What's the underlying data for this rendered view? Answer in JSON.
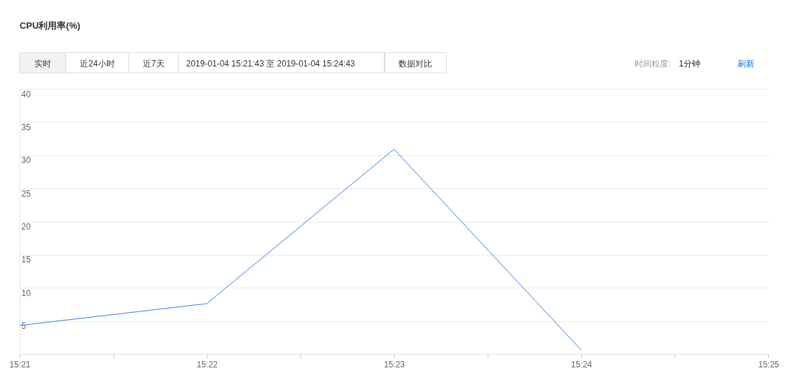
{
  "chart_data": {
    "type": "line",
    "title": "CPU利用率(%)",
    "annotations": [
      "实时",
      "近24小时",
      "近7天",
      "2019-01-04 15:21:43 至 2019-01-04 15:24:43",
      "数据对比",
      "时间粒度:",
      "1分钟",
      "刷新"
    ],
    "x": [
      "2019-01-04T15:21",
      "2019-01-04T15:22",
      "2019-01-04T15:23",
      "2019-01-04T15:24"
    ],
    "series": [
      {
        "color": "#2f7ee6",
        "values": [
          4.3,
          7.6,
          30.9,
          0.6
        ]
      }
    ],
    "xlim": [
      "2019-01-04T15:21",
      "2019-01-04T15:25"
    ],
    "xticks": [
      {
        "value": "2019-01-04T15:21",
        "label": "15:21"
      },
      {
        "value": "2019-01-04T15:21:30",
        "label": null
      },
      {
        "value": "2019-01-04T15:22",
        "label": "15:22"
      },
      {
        "value": "2019-01-04T15:22:30",
        "label": null
      },
      {
        "value": "2019-01-04T15:23",
        "label": "15:23"
      },
      {
        "value": "2019-01-04T15:23:30",
        "label": null
      },
      {
        "value": "2019-01-04T15:24",
        "label": "15:24"
      },
      {
        "value": "2019-01-04T15:24:30",
        "label": null
      },
      {
        "value": "2019-01-04T15:25",
        "label": "15:25"
      }
    ],
    "ylim": [
      0,
      40
    ],
    "yticks": [
      5,
      10,
      15,
      20,
      25,
      30,
      35,
      40
    ],
    "grid": "y"
  }
}
